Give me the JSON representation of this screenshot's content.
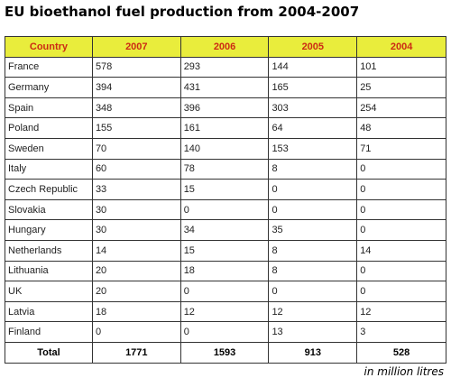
{
  "title": "EU bioethanol fuel production from 2004-2007",
  "unit_note": "in million litres",
  "colors": {
    "header_bg": "#e9ed3c",
    "header_text": "#cc2a14"
  },
  "table": {
    "headers": [
      "Country",
      "2007",
      "2006",
      "2005",
      "2004"
    ],
    "rows": [
      [
        "France",
        "578",
        "293",
        "144",
        "101"
      ],
      [
        "Germany",
        "394",
        "431",
        "165",
        "25"
      ],
      [
        "Spain",
        "348",
        "396",
        "303",
        "254"
      ],
      [
        "Poland",
        "155",
        "161",
        "64",
        "48"
      ],
      [
        "Sweden",
        "70",
        "140",
        "153",
        "71"
      ],
      [
        "Italy",
        "60",
        "78",
        "8",
        "0"
      ],
      [
        "Czech Republic",
        "33",
        "15",
        "0",
        "0"
      ],
      [
        "Slovakia",
        "30",
        "0",
        "0",
        "0"
      ],
      [
        "Hungary",
        "30",
        "34",
        "35",
        "0"
      ],
      [
        "Netherlands",
        "14",
        "15",
        "8",
        "14"
      ],
      [
        "Lithuania",
        "20",
        "18",
        "8",
        "0"
      ],
      [
        "UK",
        "20",
        "0",
        "0",
        "0"
      ],
      [
        "Latvia",
        "18",
        "12",
        "12",
        "12"
      ],
      [
        "Finland",
        "0",
        "0",
        "13",
        "3"
      ]
    ],
    "total": [
      "Total",
      "1771",
      "1593",
      "913",
      "528"
    ]
  }
}
